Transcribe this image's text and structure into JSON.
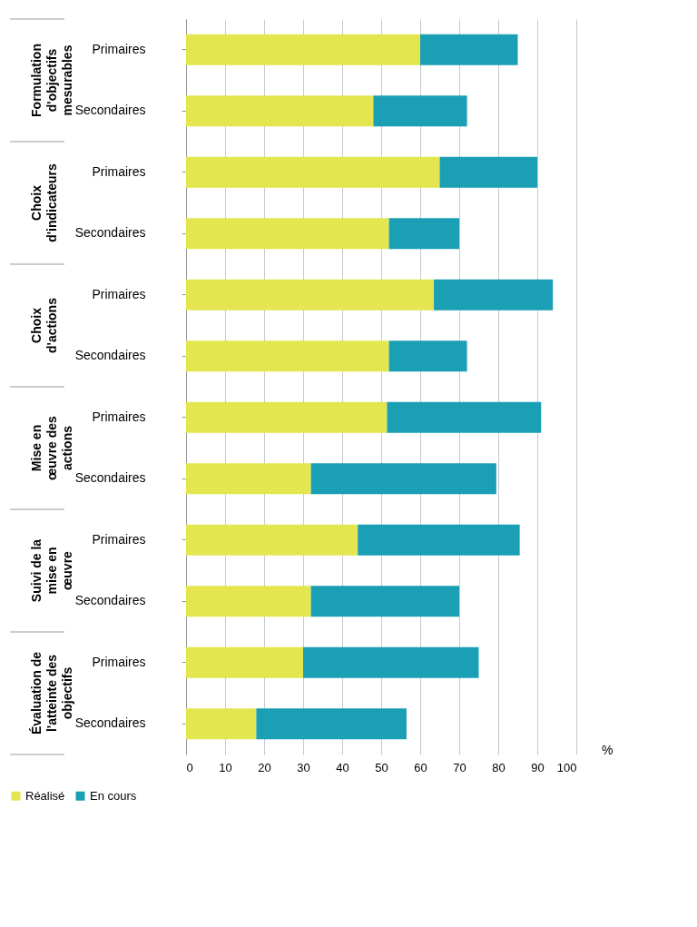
{
  "chart_data": {
    "type": "bar",
    "orientation": "horizontal",
    "stacked": true,
    "categories": [
      "Primaires",
      "Secondaires",
      "Primaires",
      "Secondaires",
      "Primaires",
      "Secondaires",
      "Primaires",
      "Secondaires",
      "Primaires",
      "Secondaires",
      "Primaires",
      "Secondaires"
    ],
    "series": [
      {
        "name": "Réalisé",
        "color": "#e3e64f",
        "values": [
          60,
          48,
          65,
          52,
          63.5,
          52,
          51.5,
          32,
          44,
          32,
          30,
          18
        ]
      },
      {
        "name": "En cours",
        "color": "#1a9fb5",
        "values": [
          25,
          24,
          25,
          18,
          30.5,
          20,
          39.5,
          47.5,
          41.5,
          38,
          45,
          38.5
        ]
      }
    ],
    "annotations": [
      "Formulation\nd'objectifs\nmesurables",
      "Choix\nd'indicateurs",
      "Choix\nd'actions",
      "Mise en\nœuvre des\nactions",
      "Suivi de la\nmise en\nœuvre",
      "Évaluation de\nl'atteinte des\nobjectifs"
    ],
    "xlabel": "%",
    "xlim": [
      0,
      100
    ],
    "xticks": [
      0,
      10,
      20,
      30,
      40,
      50,
      60,
      70,
      80,
      90,
      100
    ],
    "grid": "x",
    "legend": "bottom"
  }
}
